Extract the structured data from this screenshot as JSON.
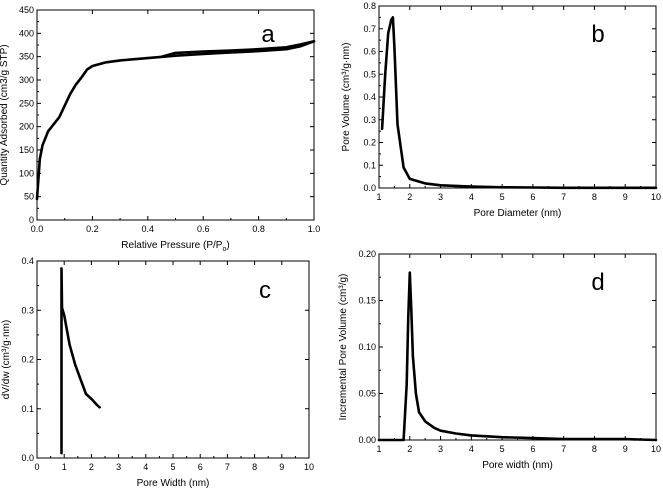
{
  "chart_data": [
    {
      "panel_label": "a",
      "type": "line",
      "xlabel": "Relative Pressure (P/P",
      "xlabel_sub": "o",
      "xlabel_end": ")",
      "ylabel": "Quantity Adsorbed (cm3/g STP)",
      "xlim": [
        0,
        1.0
      ],
      "ylim": [
        0,
        450
      ],
      "xticks": [
        "0.0",
        "0.2",
        "0.4",
        "0.6",
        "0.8",
        "1.0"
      ],
      "yticks": [
        "0",
        "50",
        "100",
        "150",
        "200",
        "250",
        "300",
        "350",
        "400",
        "450"
      ],
      "series": [
        {
          "x": [
            0.0,
            0.01,
            0.02,
            0.04,
            0.06,
            0.08,
            0.1,
            0.12,
            0.14,
            0.16,
            0.18,
            0.2,
            0.25,
            0.3,
            0.4,
            0.5,
            0.6,
            0.7,
            0.8,
            0.9,
            0.95,
            1.0
          ],
          "y": [
            45,
            130,
            160,
            190,
            205,
            220,
            245,
            270,
            290,
            305,
            322,
            330,
            338,
            342,
            347,
            352,
            356,
            359,
            362,
            366,
            372,
            383
          ]
        },
        {
          "x": [
            1.0,
            0.95,
            0.9,
            0.8,
            0.7,
            0.6,
            0.5,
            0.45
          ],
          "y": [
            383,
            376,
            370,
            366,
            363,
            361,
            358,
            350
          ]
        }
      ]
    },
    {
      "panel_label": "b",
      "type": "line",
      "xlabel": "Pore Diameter (nm)",
      "ylabel": "Pore Volume (cm³/g·nm)",
      "xlim": [
        1,
        10
      ],
      "ylim": [
        0,
        0.8
      ],
      "xticks": [
        "1",
        "2",
        "3",
        "4",
        "5",
        "6",
        "7",
        "8",
        "9",
        "10"
      ],
      "yticks": [
        "0.0",
        "0.1",
        "0.2",
        "0.3",
        "0.4",
        "0.5",
        "0.6",
        "0.7",
        "0.8"
      ],
      "series": [
        {
          "x": [
            1.1,
            1.2,
            1.3,
            1.4,
            1.45,
            1.5,
            1.6,
            1.8,
            2.0,
            2.5,
            3.0,
            4.0,
            5.0,
            6.0,
            7.0,
            8.0,
            9.0,
            10.0
          ],
          "y": [
            0.26,
            0.5,
            0.68,
            0.74,
            0.75,
            0.62,
            0.28,
            0.09,
            0.04,
            0.02,
            0.012,
            0.006,
            0.003,
            0.002,
            0.001,
            0.001,
            0.001,
            0.001
          ]
        }
      ]
    },
    {
      "panel_label": "c",
      "type": "line",
      "xlabel": "Pore Width (nm)",
      "ylabel": "dV/dw (cm³/g·nm)",
      "xlim": [
        0,
        10
      ],
      "ylim": [
        0,
        0.4
      ],
      "xticks": [
        "0",
        "1",
        "2",
        "3",
        "4",
        "5",
        "6",
        "7",
        "8",
        "9",
        "10"
      ],
      "yticks": [
        "0.0",
        "0.1",
        "0.2",
        "0.3",
        "0.4"
      ],
      "series": [
        {
          "x": [
            0.9,
            0.9,
            0.92,
            1.0,
            1.2,
            1.4,
            1.6,
            1.8,
            2.0,
            2.2,
            2.3
          ],
          "y": [
            0.01,
            0.385,
            0.305,
            0.29,
            0.23,
            0.19,
            0.16,
            0.13,
            0.12,
            0.108,
            0.103
          ]
        }
      ]
    },
    {
      "panel_label": "d",
      "type": "line",
      "xlabel": "Pore width (nm)",
      "ylabel": "Incremental Pore Volume (cm³/g)",
      "xlim": [
        1,
        10
      ],
      "ylim": [
        0,
        0.2
      ],
      "xticks": [
        "1",
        "2",
        "3",
        "4",
        "5",
        "6",
        "7",
        "8",
        "9",
        "10"
      ],
      "yticks": [
        "0.00",
        "0.05",
        "0.10",
        "0.15",
        "0.20"
      ],
      "series": [
        {
          "x": [
            1.0,
            1.8,
            1.9,
            1.95,
            2.0,
            2.05,
            2.1,
            2.2,
            2.3,
            2.5,
            2.8,
            3.0,
            3.5,
            4.0,
            5.0,
            6.0,
            7.0,
            8.0,
            9.0,
            10.0
          ],
          "y": [
            0.0,
            0.0,
            0.06,
            0.13,
            0.18,
            0.14,
            0.09,
            0.05,
            0.03,
            0.02,
            0.013,
            0.01,
            0.007,
            0.005,
            0.003,
            0.002,
            0.001,
            0.001,
            0.001,
            0.0
          ]
        }
      ]
    }
  ]
}
